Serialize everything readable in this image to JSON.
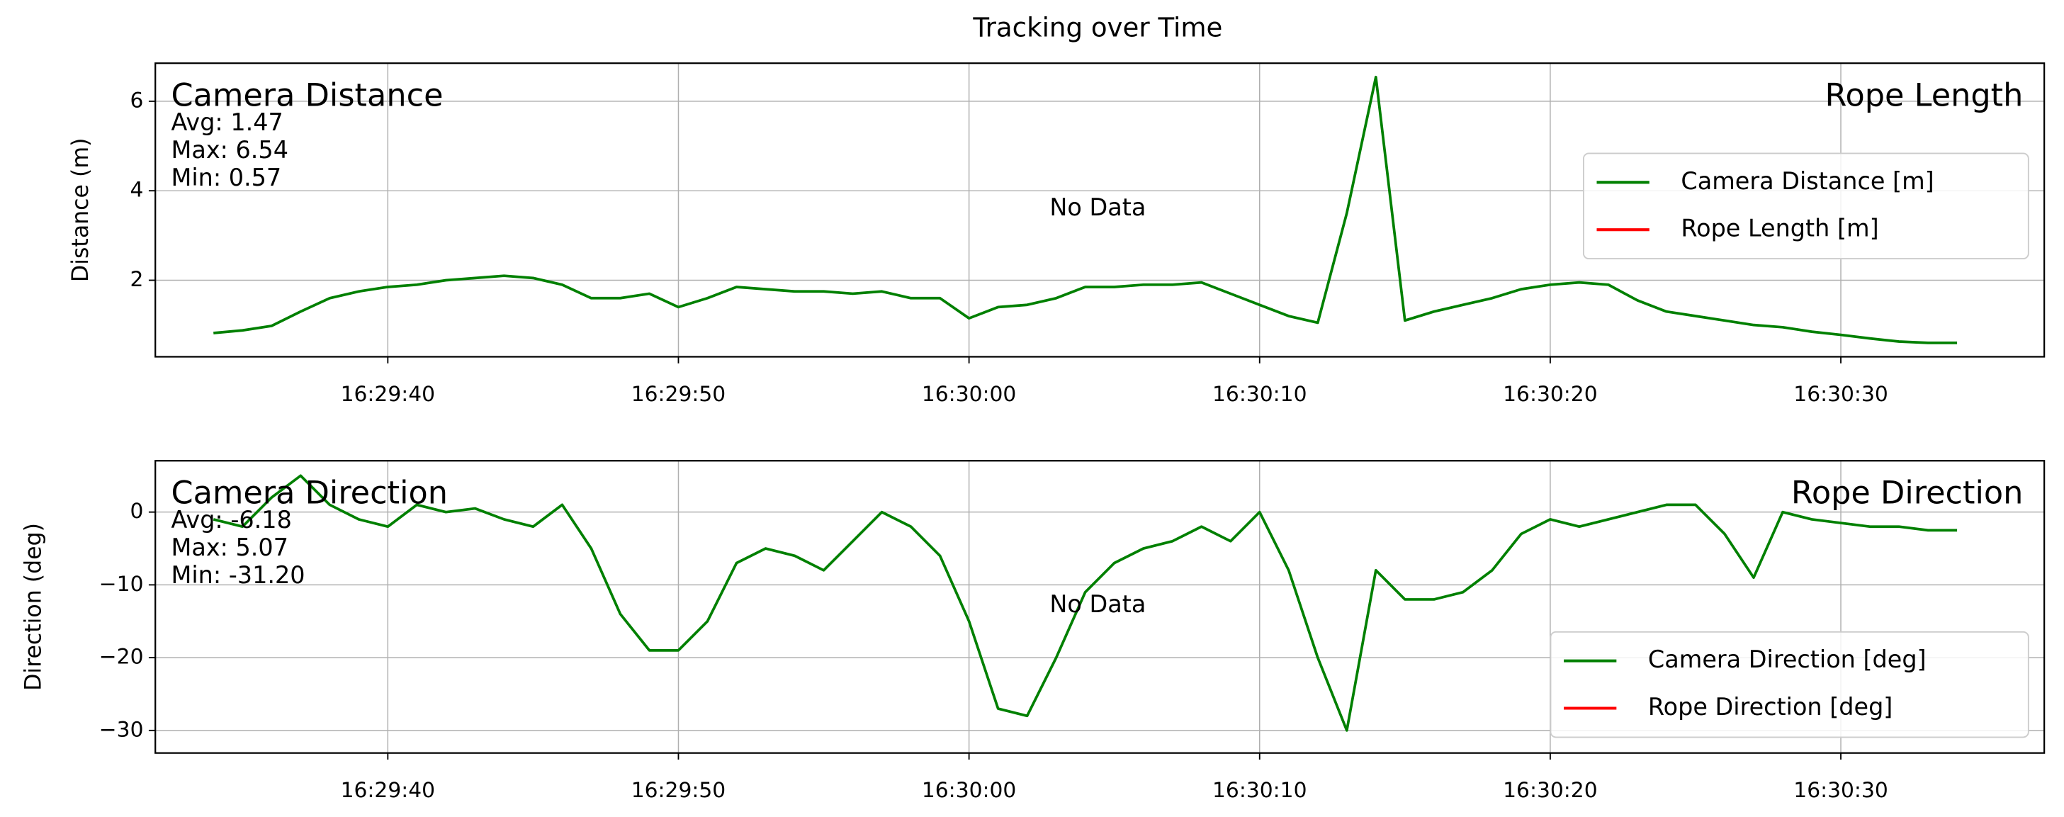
{
  "title": "Tracking over Time",
  "chart_data": [
    {
      "type": "line",
      "ylabel": "Distance (m)",
      "x": [
        "16:29:34",
        "16:29:35",
        "16:29:36",
        "16:29:37",
        "16:29:38",
        "16:29:39",
        "16:29:40",
        "16:29:41",
        "16:29:42",
        "16:29:43",
        "16:29:44",
        "16:29:45",
        "16:29:46",
        "16:29:47",
        "16:29:48",
        "16:29:49",
        "16:29:50",
        "16:29:51",
        "16:29:52",
        "16:29:53",
        "16:29:54",
        "16:29:55",
        "16:29:56",
        "16:29:57",
        "16:29:58",
        "16:29:59",
        "16:30:00",
        "16:30:01",
        "16:30:02",
        "16:30:03",
        "16:30:04",
        "16:30:05",
        "16:30:06",
        "16:30:07",
        "16:30:08",
        "16:30:09",
        "16:30:10",
        "16:30:11",
        "16:30:12",
        "16:30:13",
        "16:30:14",
        "16:30:15",
        "16:30:16",
        "16:30:17",
        "16:30:18",
        "16:30:19",
        "16:30:20",
        "16:30:21",
        "16:30:22",
        "16:30:23",
        "16:30:24",
        "16:30:25",
        "16:30:26",
        "16:30:27",
        "16:30:28",
        "16:30:29",
        "16:30:30",
        "16:30:31",
        "16:30:32",
        "16:30:33",
        "16:30:34"
      ],
      "xlim": [
        "16:29:32",
        "16:30:37"
      ],
      "xticks": [
        "16:29:40",
        "16:29:50",
        "16:30:00",
        "16:30:10",
        "16:30:20",
        "16:30:30"
      ],
      "ylim": [
        0.29,
        6.85
      ],
      "yticks": [
        2,
        4,
        6
      ],
      "grid": true,
      "legend": "center right",
      "series": [
        {
          "name": "Camera Distance [m]",
          "color": "#008000",
          "values": [
            0.82,
            0.88,
            0.98,
            1.3,
            1.6,
            1.75,
            1.85,
            1.9,
            2.0,
            2.05,
            2.1,
            2.05,
            1.9,
            1.6,
            1.6,
            1.7,
            1.4,
            1.6,
            1.85,
            1.8,
            1.75,
            1.75,
            1.7,
            1.75,
            1.6,
            1.6,
            1.15,
            1.4,
            1.45,
            1.6,
            1.85,
            1.85,
            1.9,
            1.9,
            1.95,
            1.7,
            1.45,
            1.2,
            1.05,
            3.5,
            6.54,
            1.1,
            1.3,
            1.45,
            1.6,
            1.8,
            1.9,
            1.95,
            1.9,
            1.55,
            1.3,
            1.2,
            1.1,
            1.0,
            0.95,
            0.85,
            0.78,
            0.7,
            0.63,
            0.6,
            0.6
          ]
        },
        {
          "name": "Rope Length [m]",
          "color": "#ff0000",
          "values": [
            null,
            null,
            null,
            null,
            null,
            null,
            null,
            null,
            null,
            null,
            null,
            null,
            null,
            null,
            null,
            null,
            null,
            null,
            null,
            null,
            null,
            null,
            null,
            null,
            null,
            null,
            null,
            null,
            null,
            null,
            null,
            null,
            null,
            null,
            null,
            null,
            null,
            null,
            null,
            null,
            null,
            null,
            null,
            null,
            null,
            null,
            null,
            null,
            null,
            null,
            null,
            null,
            null,
            null,
            null,
            null,
            null,
            null,
            null,
            null,
            null
          ]
        }
      ],
      "annotations": {
        "left_title": "Camera Distance",
        "stats": [
          "Avg: 1.47",
          "Max: 6.54",
          "Min: 0.57"
        ],
        "right_title": "Rope Length",
        "center_text": "No Data"
      }
    },
    {
      "type": "line",
      "ylabel": "Direction (deg)",
      "x": [
        "16:29:34",
        "16:29:35",
        "16:29:36",
        "16:29:37",
        "16:29:38",
        "16:29:39",
        "16:29:40",
        "16:29:41",
        "16:29:42",
        "16:29:43",
        "16:29:44",
        "16:29:45",
        "16:29:46",
        "16:29:47",
        "16:29:48",
        "16:29:49",
        "16:29:50",
        "16:29:51",
        "16:29:52",
        "16:29:53",
        "16:29:54",
        "16:29:55",
        "16:29:56",
        "16:29:57",
        "16:29:58",
        "16:29:59",
        "16:30:00",
        "16:30:01",
        "16:30:02",
        "16:30:03",
        "16:30:04",
        "16:30:05",
        "16:30:06",
        "16:30:07",
        "16:30:08",
        "16:30:09",
        "16:30:10",
        "16:30:11",
        "16:30:12",
        "16:30:13",
        "16:30:14",
        "16:30:15",
        "16:30:16",
        "16:30:17",
        "16:30:18",
        "16:30:19",
        "16:30:20",
        "16:30:21",
        "16:30:22",
        "16:30:23",
        "16:30:24",
        "16:30:25",
        "16:30:26",
        "16:30:27",
        "16:30:28",
        "16:30:29",
        "16:30:30",
        "16:30:31",
        "16:30:32",
        "16:30:33",
        "16:30:34"
      ],
      "xlim": [
        "16:29:32",
        "16:30:37"
      ],
      "xticks": [
        "16:29:40",
        "16:29:50",
        "16:30:00",
        "16:30:10",
        "16:30:20",
        "16:30:30"
      ],
      "ylim": [
        -33.1,
        7.05
      ],
      "yticks": [
        {
          "value": -30,
          "label": "−30"
        },
        {
          "value": -20,
          "label": "−20"
        },
        {
          "value": -10,
          "label": "−10"
        },
        0
      ],
      "grid": true,
      "legend": "lower right",
      "series": [
        {
          "name": "Camera Direction [deg]",
          "color": "#008000",
          "values": [
            -1,
            -2,
            2,
            5,
            1,
            -1,
            -2,
            1,
            0,
            0.5,
            -1,
            -2,
            1,
            -5,
            -14,
            -19,
            -19,
            -15,
            -7,
            -5,
            -6,
            -8,
            -4,
            0,
            -2,
            -6,
            -15,
            -27,
            -28,
            -20,
            -11,
            -7,
            -5,
            -4,
            -2,
            -4,
            0,
            -8,
            -20,
            -30,
            -8,
            -12,
            -12,
            -11,
            -8,
            -3,
            -1,
            -2,
            -1,
            0,
            1,
            1,
            -3,
            -9,
            0,
            -1,
            -1.5,
            -2,
            -2,
            -2.5,
            -2.5
          ]
        },
        {
          "name": "Rope Direction [deg]",
          "color": "#ff0000",
          "values": [
            null,
            null,
            null,
            null,
            null,
            null,
            null,
            null,
            null,
            null,
            null,
            null,
            null,
            null,
            null,
            null,
            null,
            null,
            null,
            null,
            null,
            null,
            null,
            null,
            null,
            null,
            null,
            null,
            null,
            null,
            null,
            null,
            null,
            null,
            null,
            null,
            null,
            null,
            null,
            null,
            null,
            null,
            null,
            null,
            null,
            null,
            null,
            null,
            null,
            null,
            null,
            null,
            null,
            null,
            null,
            null,
            null,
            null,
            null,
            null,
            null
          ]
        }
      ],
      "annotations": {
        "left_title": "Camera Direction",
        "stats": [
          "Avg: -6.18",
          "Max: 5.07",
          "Min: -31.20"
        ],
        "right_title": "Rope Direction",
        "center_text": "No Data"
      }
    }
  ]
}
